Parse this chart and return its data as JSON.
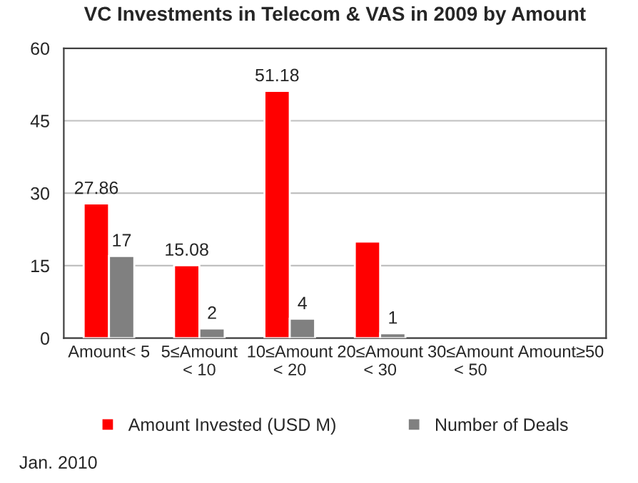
{
  "chart_data": {
    "type": "bar",
    "title": "VC Investments in Telecom & VAS in 2009 by Amount",
    "categories": [
      "Amount< 5",
      "5≤Amount < 10",
      "10≤Amount < 20",
      "20≤Amount < 30",
      "30≤Amount < 50",
      "Amount≥50"
    ],
    "series": [
      {
        "name": "Amount Invested (USD M)",
        "color": "#ff0000",
        "values": [
          27.86,
          15.08,
          51.18,
          20,
          null,
          null
        ],
        "value_labels": [
          "27.86",
          "15.08",
          "51.18",
          null,
          null,
          null
        ]
      },
      {
        "name": "Number of Deals",
        "color": "#808080",
        "values": [
          17,
          2,
          4,
          1,
          null,
          null
        ],
        "value_labels": [
          "17",
          "2",
          "4",
          "1",
          null,
          null
        ]
      }
    ],
    "ylim": [
      0,
      60
    ],
    "yticks": [
      0,
      15,
      30,
      45,
      60
    ],
    "grid": "y",
    "legend": "bottom",
    "annotations": [
      "Jan. 2010"
    ]
  }
}
